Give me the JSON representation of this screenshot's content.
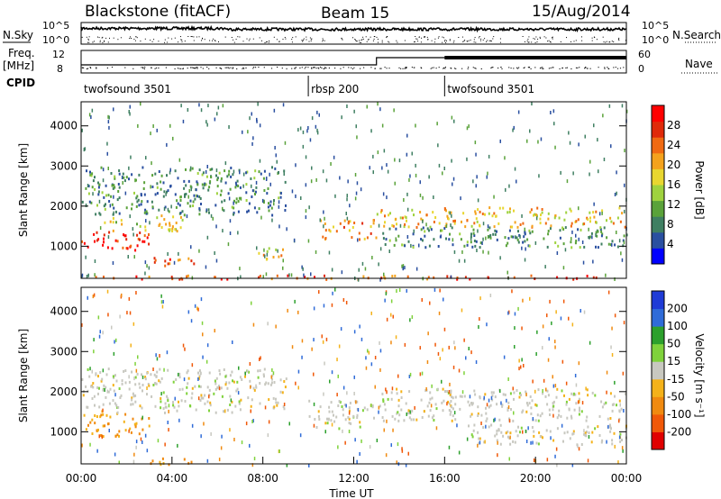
{
  "header": {
    "station": "Blackstone (fitACF)",
    "beam": "Beam 15",
    "date": "15/Aug/2014"
  },
  "left_labels": {
    "nsky": "N.Sky",
    "freq_line1": "Freq.",
    "freq_line2": "[MHz]",
    "cpid": "CPID"
  },
  "right_labels": {
    "nsearch": "N.Search",
    "nave": "Nave"
  },
  "strip_ticks": {
    "noise_left": [
      "10^5",
      "10^0"
    ],
    "noise_right": [
      "10^5",
      "10^0"
    ],
    "freq_left": [
      "12",
      "8"
    ],
    "nave_right": [
      "60",
      "0"
    ]
  },
  "cpid_segments": [
    {
      "label": "twofsound 3501",
      "start_hour": 0,
      "end_hour": 10.0
    },
    {
      "label": "rbsp 200",
      "start_hour": 10.0,
      "end_hour": 16.0
    },
    {
      "label": "twofsound 3501",
      "start_hour": 16.0,
      "end_hour": 24.0
    }
  ],
  "color_colors": {
    "power": [
      "#0000ff",
      "#2a4fa0",
      "#3f7f62",
      "#5aa23a",
      "#9fd23e",
      "#e8d630",
      "#f4a21d",
      "#f06a12",
      "#e02a0a",
      "#ff0000"
    ],
    "velocity": [
      "#1f3bd6",
      "#2f6bd8",
      "#2ca02c",
      "#7fd23b",
      "#c8c8c0",
      "#f4b21a",
      "#f08a10",
      "#f05808",
      "#e00000"
    ]
  },
  "chart_data": [
    {
      "type": "heatmap",
      "panel": "power",
      "ylabel": "Slant Range [km]",
      "yticks": [
        "1000",
        "2000",
        "3000",
        "4000"
      ],
      "ylim": [
        200,
        4600
      ],
      "colorbar_label": "Power [dB]",
      "colorbar_ticks": [
        "4",
        "8",
        "12",
        "16",
        "20",
        "24",
        "28"
      ],
      "colorbar_range": [
        0,
        30
      ],
      "echo_regions": [
        {
          "hours": [
            0.0,
            3.0
          ],
          "range_km": [
            900,
            1400
          ],
          "value_db": 26
        },
        {
          "hours": [
            1.0,
            4.5
          ],
          "range_km": [
            1400,
            1800
          ],
          "value_db": 16
        },
        {
          "hours": [
            3.0,
            5.0
          ],
          "range_km": [
            500,
            750
          ],
          "value_db": 24
        },
        {
          "hours": [
            0.0,
            9.0
          ],
          "range_km": [
            1800,
            3000
          ],
          "value_db": 8
        },
        {
          "hours": [
            7.5,
            9.0
          ],
          "range_km": [
            700,
            1000
          ],
          "value_db": 18
        },
        {
          "hours": [
            10.5,
            13.0
          ],
          "range_km": [
            1200,
            1700
          ],
          "value_db": 20
        },
        {
          "hours": [
            13.0,
            24.0
          ],
          "range_km": [
            1500,
            2000
          ],
          "value_db": 18
        },
        {
          "hours": [
            13.0,
            24.0
          ],
          "range_km": [
            1000,
            1500
          ],
          "value_db": 8
        },
        {
          "hours": [
            0.0,
            24.0
          ],
          "range_km": [
            200,
            300
          ],
          "value_db": 24
        }
      ]
    },
    {
      "type": "heatmap",
      "panel": "velocity",
      "xlabel": "Time UT",
      "xticks": [
        "00:00",
        "04:00",
        "08:00",
        "12:00",
        "16:00",
        "20:00",
        "00:00"
      ],
      "xlim": [
        0,
        24
      ],
      "ylabel": "Slant Range [km]",
      "yticks": [
        "1000",
        "2000",
        "3000",
        "4000"
      ],
      "ylim": [
        200,
        4600
      ],
      "colorbar_label": "Velocity [m s⁻¹]",
      "colorbar_ticks": [
        "200",
        "100",
        "50",
        "15",
        "-15",
        "-50",
        "-100",
        "-200"
      ],
      "colorbar_range": [
        -250,
        250
      ],
      "echo_regions": [
        {
          "hours": [
            0.0,
            3.0
          ],
          "range_km": [
            900,
            1500
          ],
          "value_ms": -50
        },
        {
          "hours": [
            0.0,
            9.0
          ],
          "range_km": [
            1500,
            2600
          ],
          "value_ms": 0
        },
        {
          "hours": [
            3.0,
            5.0
          ],
          "range_km": [
            200,
            400
          ],
          "value_ms": -60
        },
        {
          "hours": [
            10.0,
            13.0
          ],
          "range_km": [
            1100,
            1800
          ],
          "value_ms": 0
        },
        {
          "hours": [
            13.0,
            24.0
          ],
          "range_km": [
            1300,
            2100
          ],
          "value_ms": 0
        },
        {
          "hours": [
            17.0,
            24.0
          ],
          "range_km": [
            700,
            1200
          ],
          "value_ms": 0
        }
      ]
    }
  ]
}
